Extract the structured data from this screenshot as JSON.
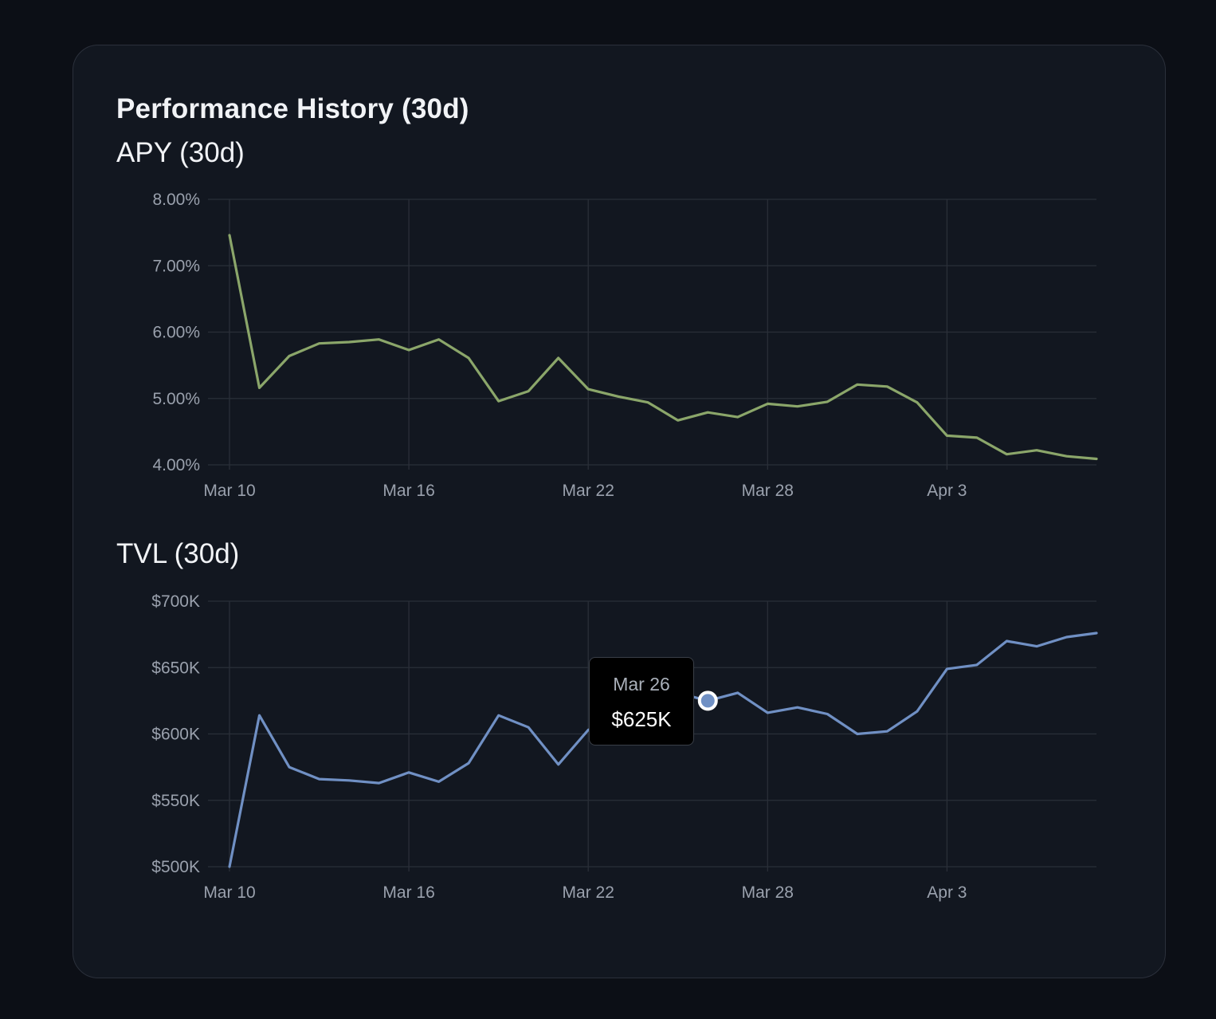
{
  "card": {
    "title": "Performance History (30d)"
  },
  "chart_data": [
    {
      "type": "line",
      "title": "APY (30d)",
      "xlabel": "",
      "ylabel": "",
      "x": [
        "Mar 10",
        "Mar 11",
        "Mar 12",
        "Mar 13",
        "Mar 14",
        "Mar 15",
        "Mar 16",
        "Mar 17",
        "Mar 18",
        "Mar 19",
        "Mar 20",
        "Mar 21",
        "Mar 22",
        "Mar 23",
        "Mar 24",
        "Mar 25",
        "Mar 26",
        "Mar 27",
        "Mar 28",
        "Mar 29",
        "Mar 30",
        "Mar 31",
        "Apr 1",
        "Apr 2",
        "Apr 3",
        "Apr 4",
        "Apr 5",
        "Apr 6",
        "Apr 7",
        "Apr 8"
      ],
      "series": [
        {
          "values": [
            7.46,
            5.16,
            5.64,
            5.83,
            5.85,
            5.89,
            5.73,
            5.89,
            5.61,
            4.96,
            5.11,
            5.61,
            5.14,
            5.03,
            4.94,
            4.67,
            4.79,
            4.72,
            4.92,
            4.88,
            4.95,
            5.21,
            5.18,
            4.94,
            4.44,
            4.41,
            4.16,
            4.22,
            4.13,
            4.09
          ],
          "color": "#8ba66a"
        }
      ],
      "ylim": [
        4.0,
        8.0
      ],
      "y_ticks": [
        "8.00%",
        "7.00%",
        "6.00%",
        "5.00%",
        "4.00%"
      ],
      "y_tick_values": [
        8,
        7,
        6,
        5,
        4
      ],
      "x_ticks": [
        "Mar 10",
        "Mar 16",
        "Mar 22",
        "Mar 28",
        "Apr 3"
      ],
      "grid": true
    },
    {
      "type": "line",
      "title": "TVL (30d)",
      "xlabel": "",
      "ylabel": "",
      "x": [
        "Mar 10",
        "Mar 11",
        "Mar 12",
        "Mar 13",
        "Mar 14",
        "Mar 15",
        "Mar 16",
        "Mar 17",
        "Mar 18",
        "Mar 19",
        "Mar 20",
        "Mar 21",
        "Mar 22",
        "Mar 23",
        "Mar 24",
        "Mar 25",
        "Mar 26",
        "Mar 27",
        "Mar 28",
        "Mar 29",
        "Mar 30",
        "Mar 31",
        "Apr 1",
        "Apr 2",
        "Apr 3",
        "Apr 4",
        "Apr 5",
        "Apr 6",
        "Apr 7",
        "Apr 8"
      ],
      "series": [
        {
          "values": [
            500,
            614,
            575,
            566,
            565,
            563,
            571,
            564,
            578,
            614,
            605,
            577,
            603,
            612,
            620,
            631,
            625,
            631,
            616,
            620,
            615,
            600,
            602,
            617,
            649,
            652,
            670,
            666,
            673,
            676
          ],
          "color": "#7090c4"
        }
      ],
      "ylim": [
        500,
        700
      ],
      "y_ticks": [
        "$700K",
        "$650K",
        "$600K",
        "$550K",
        "$500K"
      ],
      "y_tick_values": [
        700,
        650,
        600,
        550,
        500
      ],
      "x_ticks": [
        "Mar 10",
        "Mar 16",
        "Mar 22",
        "Mar 28",
        "Apr 3"
      ],
      "grid": true,
      "tooltip": {
        "date": "Mar 26",
        "value": "$625K",
        "index": 16
      }
    }
  ]
}
